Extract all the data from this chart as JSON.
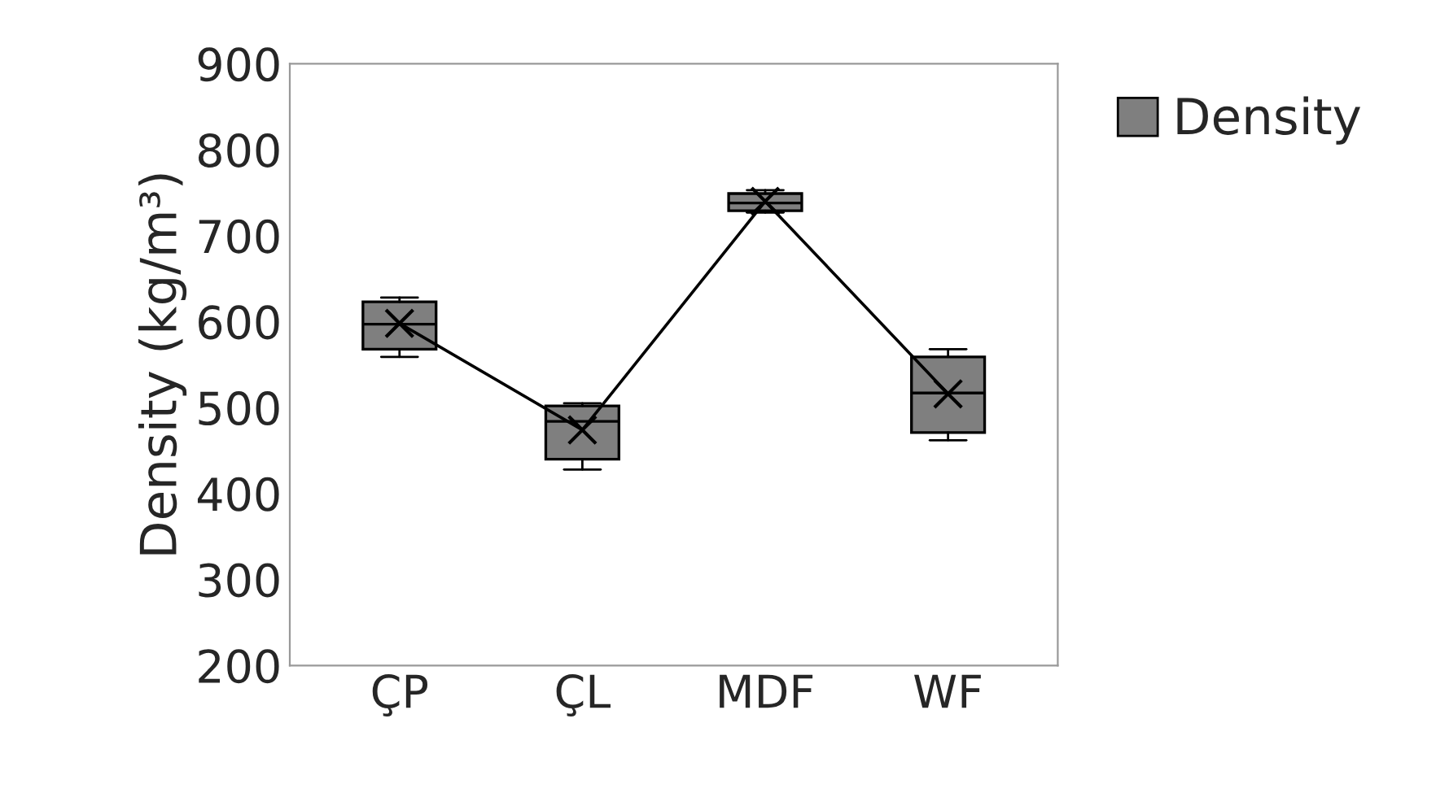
{
  "chart_data": {
    "type": "box",
    "ylabel": "Density (kg/m³)",
    "categories": [
      "ÇP",
      "ÇL",
      "MDF",
      "WF"
    ],
    "series": [
      {
        "name": "Density",
        "color": "#7f7f7f",
        "boxes": [
          {
            "low": 559,
            "q1": 568,
            "median": 597,
            "q3": 623,
            "high": 628,
            "mean": 598
          },
          {
            "low": 428,
            "q1": 440,
            "median": 484,
            "q3": 502,
            "high": 505,
            "mean": 474
          },
          {
            "low": 727,
            "q1": 729,
            "median": 738,
            "q3": 749,
            "high": 753,
            "mean": 740
          },
          {
            "low": 462,
            "q1": 471,
            "median": 517,
            "q3": 559,
            "high": 568,
            "mean": 516
          }
        ]
      },
      {
        "type": "line",
        "color": "#000000",
        "values": [
          598,
          474,
          740,
          516
        ]
      }
    ],
    "ylim": [
      200,
      900
    ],
    "yticks": [
      200,
      300,
      400,
      500,
      600,
      700,
      800,
      900
    ],
    "grid": false,
    "legend": "top right"
  }
}
